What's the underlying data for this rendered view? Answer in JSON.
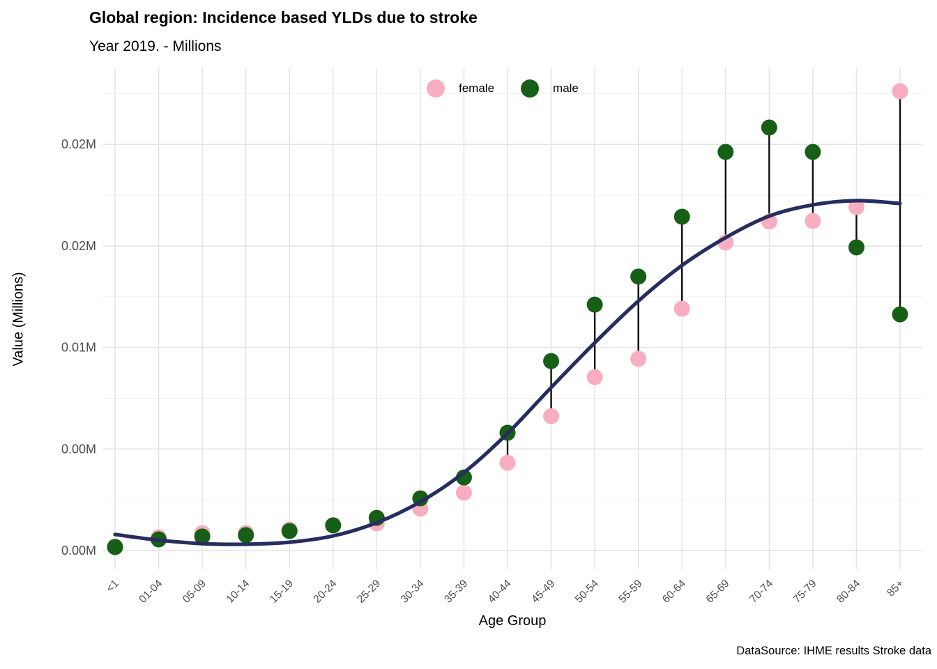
{
  "title": "Global region: Incidence based YLDs due to stroke",
  "subtitle": "Year 2019. - Millions",
  "caption": "DataSource: IHME results Stroke data",
  "legend": {
    "position": "top-center",
    "items": [
      {
        "label": "female",
        "color": "#F8AEC0"
      },
      {
        "label": "male",
        "color": "#175E17"
      }
    ]
  },
  "axes": {
    "x_title": "Age Group",
    "y_title": "Value (Millions)",
    "y_ticks": [
      {
        "label": "0.00M",
        "value": 0
      },
      {
        "label": "0.00M",
        "value": 0.005
      },
      {
        "label": "0.01M",
        "value": 0.01
      },
      {
        "label": "0.02M",
        "value": 0.015
      },
      {
        "label": "0.02M",
        "value": 0.02
      }
    ],
    "y_minor_values": [
      0.0025,
      0.0075,
      0.0125,
      0.0175,
      0.0225
    ]
  },
  "colors": {
    "female": "#F8AEC0",
    "male": "#175E17",
    "smooth_line": "#272D5E",
    "segment": "#0d0d0d",
    "grid_major": "#E4E4E4",
    "grid_minor": "#F0F0F0",
    "tick_text": "#4D4D4D"
  },
  "chart_data": {
    "type": "scatter",
    "title": "Global region: Incidence based YLDs due to stroke",
    "subtitle": "Year 2019. - Millions",
    "xlabel": "Age Group",
    "ylabel": "Value (Millions)",
    "units": "Millions",
    "ylim": [
      0,
      0.0238
    ],
    "grid": true,
    "legend_position": "top",
    "categories": [
      "<1",
      "01-04",
      "05-09",
      "10-14",
      "15-19",
      "20-24",
      "25-29",
      "30-34",
      "35-39",
      "40-44",
      "45-49",
      "50-54",
      "55-59",
      "60-64",
      "65-69",
      "70-74",
      "75-79",
      "80-84",
      "85+"
    ],
    "series": [
      {
        "name": "female",
        "color": "#F8AEC0",
        "values": [
          0.0002,
          0.00065,
          0.00086,
          0.00086,
          0.00103,
          0.00125,
          0.00134,
          0.00206,
          0.00285,
          0.00432,
          0.00662,
          0.00854,
          0.00944,
          0.01191,
          0.01517,
          0.0162,
          0.01623,
          0.01692,
          0.02262
        ]
      },
      {
        "name": "male",
        "color": "#175E17",
        "values": [
          0.00017,
          0.00055,
          0.00069,
          0.00076,
          0.00096,
          0.00124,
          0.00161,
          0.00257,
          0.0036,
          0.0058,
          0.00933,
          0.01211,
          0.01349,
          0.01644,
          0.01963,
          0.02083,
          0.01963,
          0.01493,
          0.01163
        ]
      }
    ],
    "segments_between_series": true,
    "smooth_line": {
      "name": "smoothed trend",
      "color": "#272D5E",
      "values": [
        0.00079,
        0.00051,
        0.00034,
        0.00031,
        0.00041,
        0.00072,
        0.00137,
        0.0024,
        0.00384,
        0.00577,
        0.00803,
        0.01023,
        0.01229,
        0.01404,
        0.01541,
        0.01647,
        0.01702,
        0.01723,
        0.01709
      ]
    }
  }
}
